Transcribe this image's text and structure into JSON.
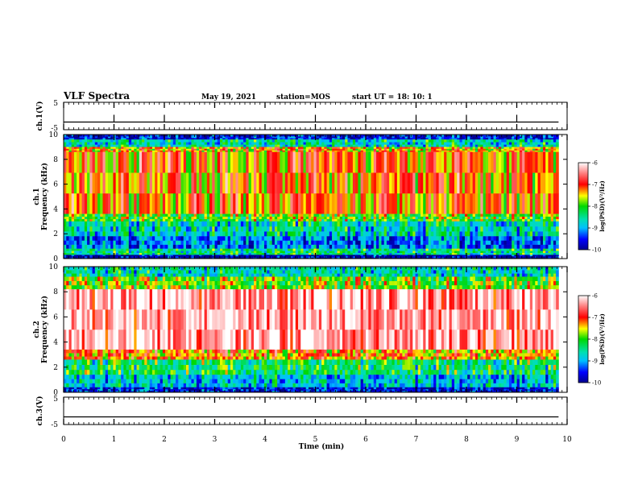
{
  "header": {
    "title": "VLF Spectra",
    "date": "May 19, 2021",
    "station": "station=MOS",
    "start": "start UT =   18: 10: 1"
  },
  "chart_data": [
    {
      "type": "line",
      "name": "ch1-voltage",
      "ylabel": "ch.1(V)",
      "ylim": [
        -5,
        5
      ],
      "ytick_labels": [
        "5",
        "-5"
      ],
      "x_range": [
        0,
        10
      ],
      "baseline": -2.2,
      "spikes_up_at": [
        1.0,
        2.0,
        5.0,
        6.0,
        7.0,
        8.0,
        9.0
      ],
      "data_end": 9.83
    },
    {
      "type": "heatmap",
      "name": "ch1-spectrogram",
      "ylabel_top": "ch.1",
      "ylabel": "Frequency (kHz)",
      "ylim": [
        0,
        10
      ],
      "yticks": [
        0,
        2,
        4,
        6,
        8,
        10
      ],
      "x_range": [
        0,
        10
      ],
      "data_end": 9.83,
      "bands": [
        {
          "from": 9.6,
          "to": 10.0,
          "value": -9.6
        },
        {
          "from": 9.0,
          "to": 9.6,
          "value": -8.6
        },
        {
          "from": 8.6,
          "to": 9.0,
          "value": -7.4
        },
        {
          "from": 3.6,
          "to": 8.6,
          "value": -7.2
        },
        {
          "from": 3.0,
          "to": 3.6,
          "value": -7.9
        },
        {
          "from": 1.8,
          "to": 3.0,
          "value": -8.6
        },
        {
          "from": 0.8,
          "to": 1.8,
          "value": -9.2
        },
        {
          "from": 0.3,
          "to": 0.8,
          "value": -8.4
        },
        {
          "from": 0.0,
          "to": 0.3,
          "value": -9.9
        }
      ],
      "colorbar": {
        "title": "log(PSD)(V²/Hz)",
        "vmin": -10,
        "vmax": -6,
        "tick_labels": [
          "-6",
          "-7",
          "-8",
          "-9",
          "-10"
        ]
      }
    },
    {
      "type": "heatmap",
      "name": "ch2-spectrogram",
      "ylabel_top": "ch.2",
      "ylabel": "Frequency (kHz)",
      "ylim": [
        0,
        10
      ],
      "yticks": [
        0,
        2,
        4,
        6,
        8,
        10
      ],
      "x_range": [
        0,
        10
      ],
      "data_end": 9.83,
      "bands": [
        {
          "from": 9.2,
          "to": 10.0,
          "value": -8.6
        },
        {
          "from": 8.2,
          "to": 9.2,
          "value": -7.8
        },
        {
          "from": 3.4,
          "to": 8.2,
          "value": -6.3
        },
        {
          "from": 2.6,
          "to": 3.4,
          "value": -7.3
        },
        {
          "from": 1.4,
          "to": 2.6,
          "value": -8.3
        },
        {
          "from": 0.4,
          "to": 1.4,
          "value": -8.8
        },
        {
          "from": 0.0,
          "to": 0.4,
          "value": -9.6
        }
      ],
      "colorbar": {
        "title": "log(PSD)(V²/Hz)",
        "vmin": -10,
        "vmax": -6,
        "tick_labels": [
          "-6",
          "-7",
          "-8",
          "-9",
          "-10"
        ]
      }
    },
    {
      "type": "line",
      "name": "ch3-voltage",
      "ylabel": "ch.3(V)",
      "ylim": [
        -5,
        5
      ],
      "ytick_labels": [
        "5",
        "-5"
      ],
      "x_range": [
        0,
        10
      ],
      "baseline": -2.2,
      "data_end": 9.83
    }
  ],
  "xaxis": {
    "label": "Time (min)",
    "ticks": [
      0,
      1,
      2,
      3,
      4,
      5,
      6,
      7,
      8,
      9,
      10
    ]
  }
}
